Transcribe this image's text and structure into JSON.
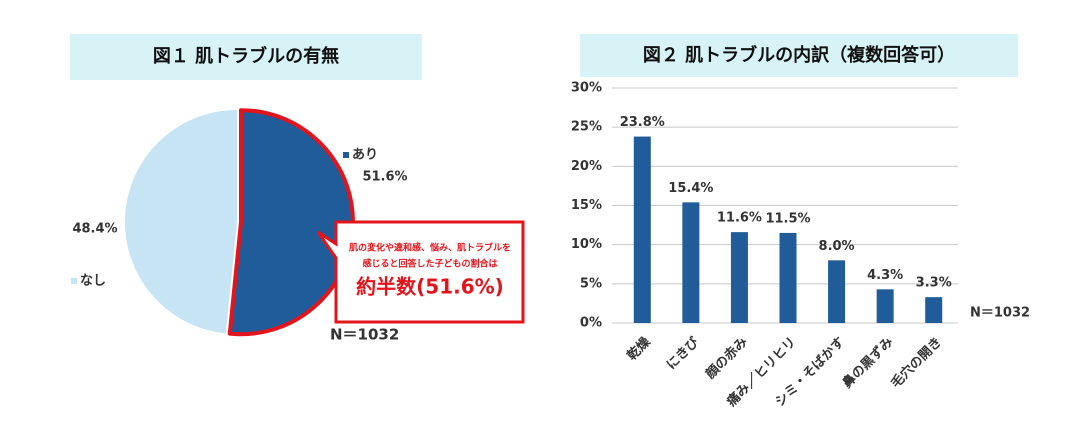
{
  "chart_data": [
    {
      "type": "pie",
      "title": "図１ 肌トラブルの有無",
      "series": [
        {
          "name": "あり",
          "color": "#1f5c99",
          "edgecolor": "#e3141c",
          "values": [
            51.6
          ],
          "value_labels": [
            "51.6%"
          ]
        },
        {
          "name": "なし",
          "color": "#c6e4f3",
          "values": [
            48.4
          ],
          "value_labels": [
            "48.4%"
          ]
        }
      ],
      "annotation": {
        "lines": [
          "肌の変化や違和感、悩み、肌トラブルを",
          "感じると回答した子どもの割合は"
        ],
        "headline": "約半数(51.6%)"
      },
      "note": "N＝1032"
    },
    {
      "type": "bar",
      "title": "図２ 肌トラブルの内訳（複数回答可）",
      "categories": [
        "乾燥",
        "にきび",
        "顔の赤み",
        "痛み／ヒリヒリ",
        "シミ・そばかす",
        "鼻の黒ずみ",
        "毛穴の開き"
      ],
      "values": [
        23.8,
        15.4,
        11.6,
        11.5,
        8.0,
        4.3,
        3.3
      ],
      "value_labels": [
        "23.8%",
        "15.4%",
        "11.6%",
        "11.5%",
        "8.0%",
        "4.3%",
        "3.3%"
      ],
      "color": "#1f5c99",
      "ylim": [
        0,
        30
      ],
      "yticks": [
        {
          "value": 0,
          "label": "0%"
        },
        {
          "value": 5,
          "label": "5%"
        },
        {
          "value": 10,
          "label": "10%"
        },
        {
          "value": 15,
          "label": "15%"
        },
        {
          "value": 20,
          "label": "20%"
        },
        {
          "value": 25,
          "label": "25%"
        },
        {
          "value": 30,
          "label": "30%"
        }
      ],
      "grid": true,
      "note": "N＝1032"
    }
  ]
}
